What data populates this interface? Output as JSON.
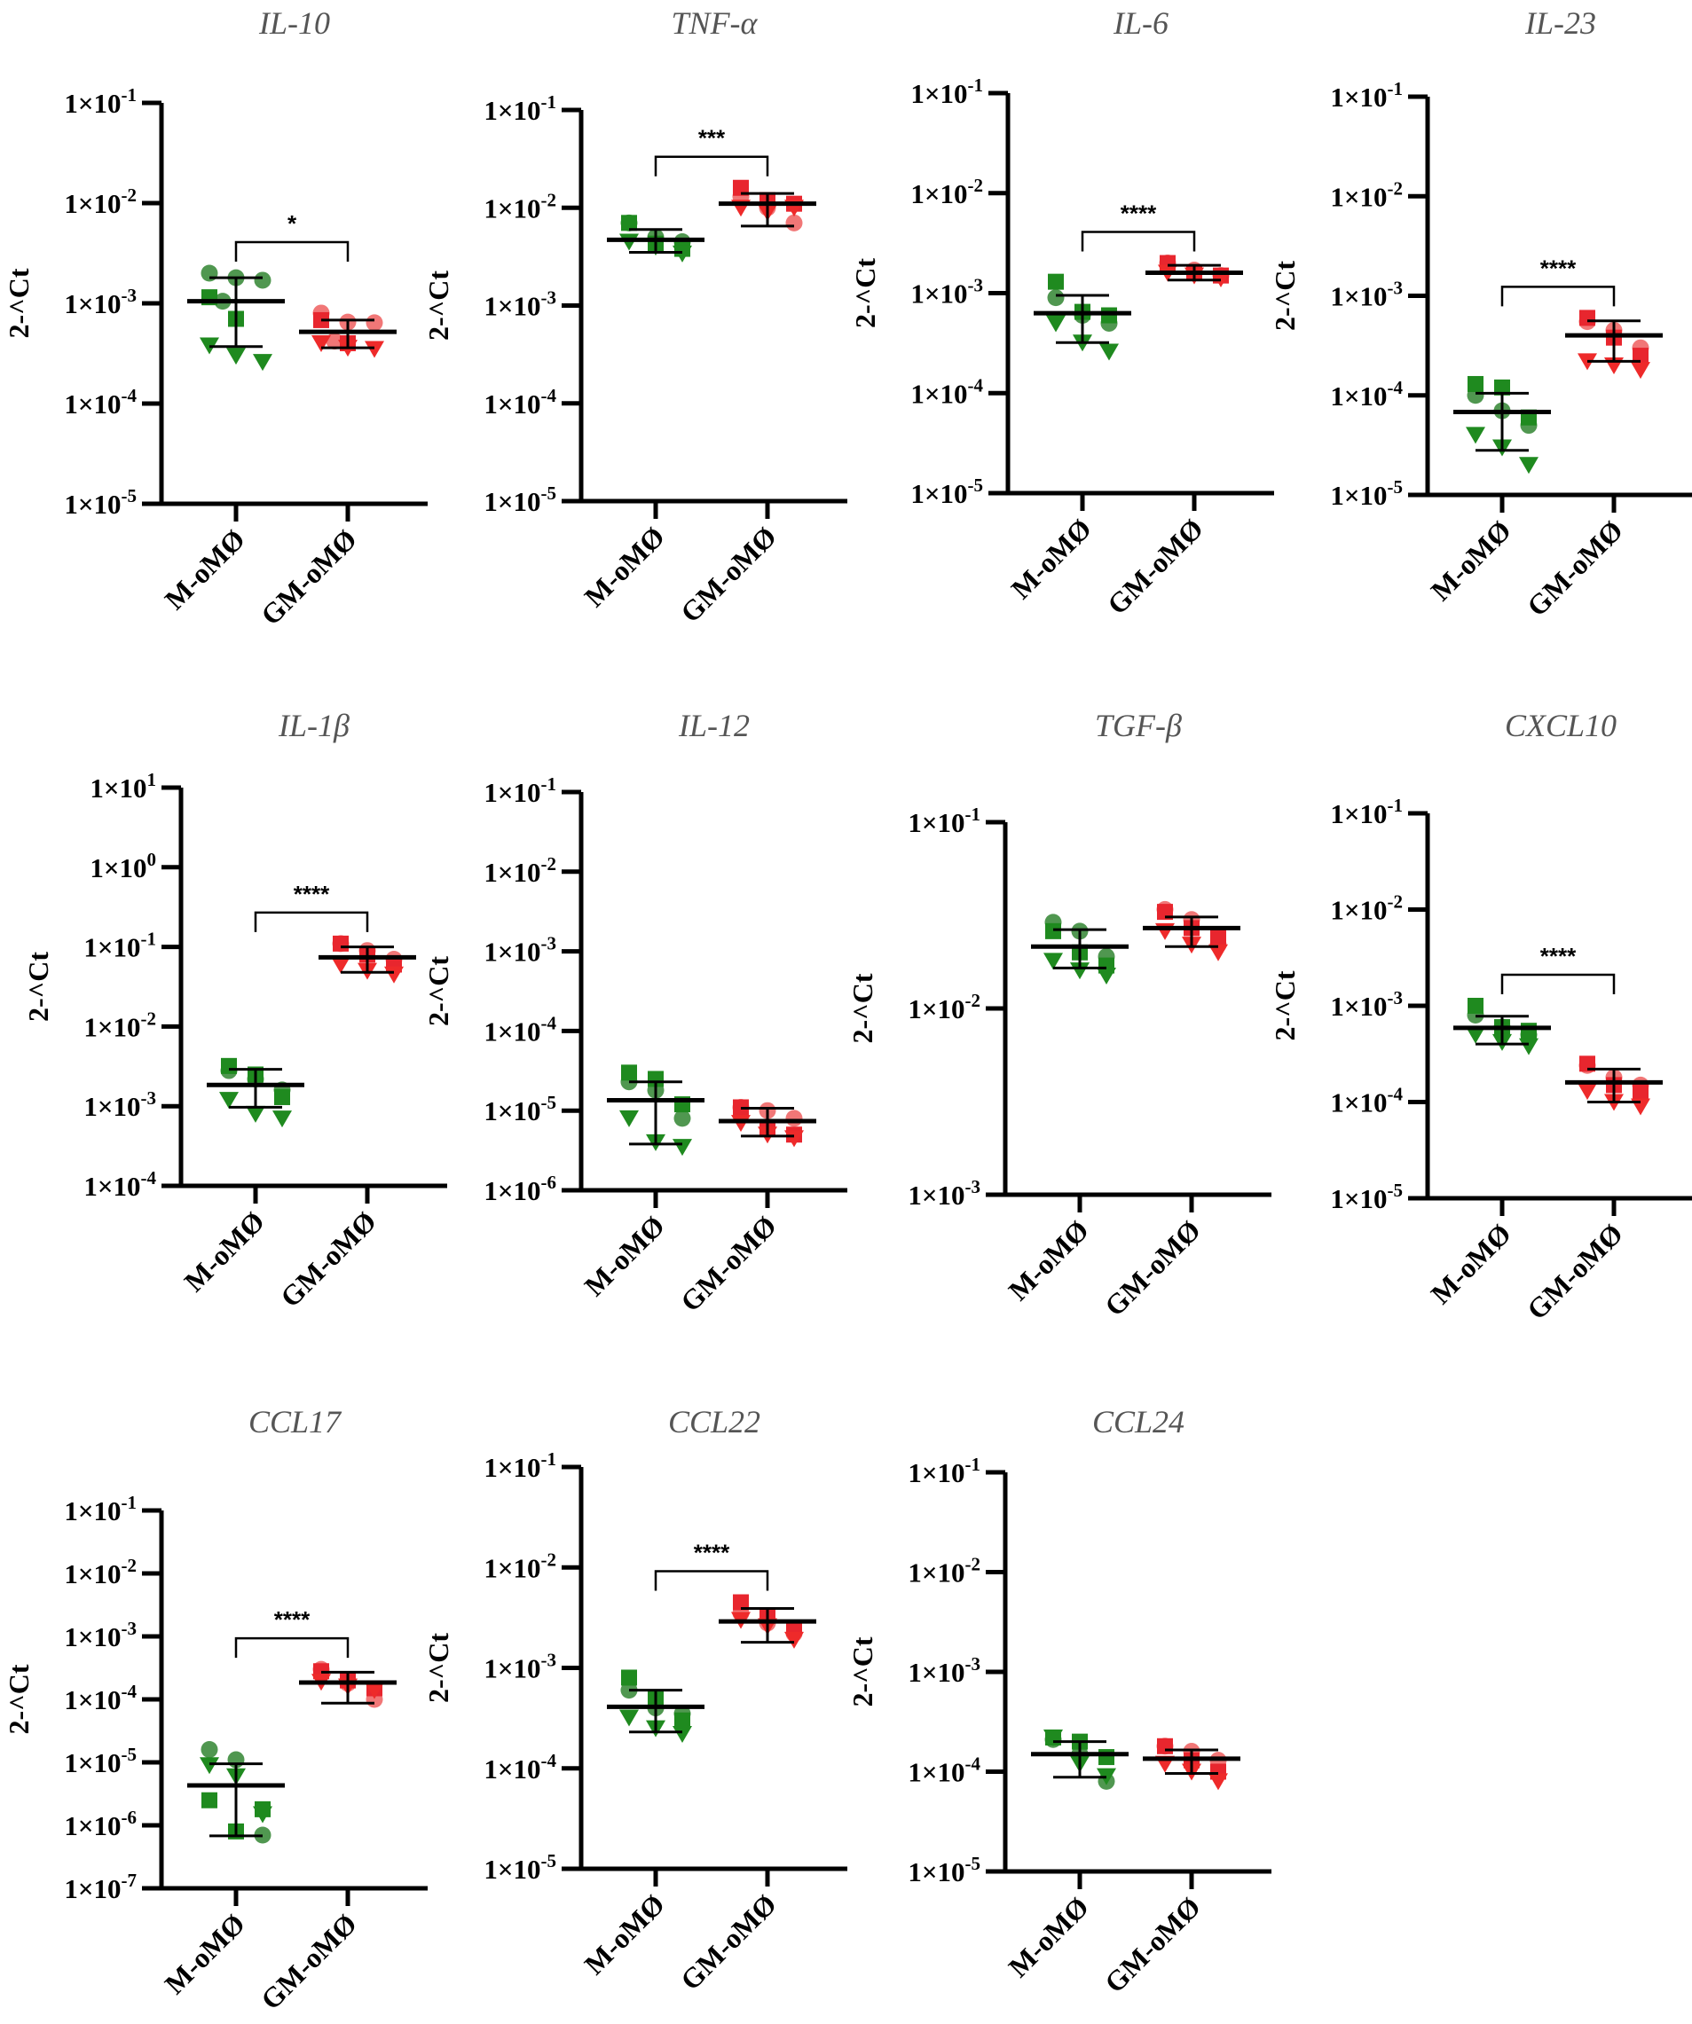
{
  "chart_data": [
    {
      "type": "scatter",
      "title": "IL-10",
      "ylabel": "2-^Ct",
      "yscale": "log",
      "ylim": [
        1e-05,
        0.1
      ],
      "ticks": [
        -1,
        -2,
        -3,
        -4,
        -5
      ],
      "categories": [
        "M-oMØ",
        "GM-oMØ"
      ],
      "significance": "*",
      "groups": [
        {
          "name": "M-oMØ",
          "mean": 0.00105,
          "err": [
            0.00037,
            0.0018
          ],
          "points": {
            "circle": [
              0.002,
              0.0018,
              0.0017,
              0.00105
            ],
            "square": [
              0.00115,
              0.0007
            ],
            "triangle": [
              0.00038,
              0.0003,
              0.00026
            ]
          }
        },
        {
          "name": "GM-oMØ",
          "mean": 0.00052,
          "err": [
            0.00036,
            0.00068
          ],
          "points": {
            "circle": [
              0.0008,
              0.00065,
              0.00064,
              0.00042
            ],
            "square": [
              0.00068,
              0.0004
            ],
            "triangle": [
              0.0004,
              0.00036,
              0.00035
            ]
          }
        }
      ]
    },
    {
      "type": "scatter",
      "title": "TNF-α",
      "ylabel": "2-^Ct",
      "yscale": "log",
      "ylim": [
        1e-05,
        0.1
      ],
      "ticks": [
        -1,
        -2,
        -3,
        -4,
        -5
      ],
      "categories": [
        "M-oMØ",
        "GM-oMØ"
      ],
      "significance": "***",
      "groups": [
        {
          "name": "M-oMØ",
          "mean": 0.0047,
          "err": [
            0.0035,
            0.006
          ],
          "points": {
            "circle": [
              0.007,
              0.005,
              0.0045
            ],
            "square": [
              0.007,
              0.0043,
              0.0038
            ],
            "triangle": [
              0.0045,
              0.004,
              0.0034
            ]
          }
        },
        {
          "name": "GM-oMØ",
          "mean": 0.011,
          "err": [
            0.0065,
            0.014
          ],
          "points": {
            "circle": [
              0.013,
              0.01,
              0.007
            ],
            "square": [
              0.016,
              0.012,
              0.011
            ],
            "triangle": [
              0.01,
              0.009,
              0.01
            ]
          }
        }
      ]
    },
    {
      "type": "scatter",
      "title": "IL-6",
      "ylabel": "2-^Ct",
      "yscale": "log",
      "ylim": [
        1e-05,
        0.1
      ],
      "ticks": [
        -1,
        -2,
        -3,
        -4,
        -5
      ],
      "categories": [
        "M-oMØ",
        "GM-oMØ"
      ],
      "significance": "****",
      "groups": [
        {
          "name": "M-oMØ",
          "mean": 0.00063,
          "err": [
            0.00032,
            0.00095
          ],
          "points": {
            "circle": [
              0.0009,
              0.0006,
              0.0005
            ],
            "square": [
              0.0013,
              0.00065,
              0.0006
            ],
            "triangle": [
              0.0005,
              0.00032,
              0.00026
            ]
          }
        },
        {
          "name": "GM-oMØ",
          "mean": 0.0016,
          "err": [
            0.00135,
            0.0019
          ],
          "points": {
            "circle": [
              0.002,
              0.0017,
              0.0015
            ],
            "square": [
              0.002,
              0.0016,
              0.0015
            ],
            "triangle": [
              0.0016,
              0.0015,
              0.0014
            ]
          }
        }
      ]
    },
    {
      "type": "scatter",
      "title": "IL-23",
      "ylabel": "2-^Ct",
      "yscale": "log",
      "ylim": [
        1e-05,
        0.1
      ],
      "ticks": [
        -1,
        -2,
        -3,
        -4,
        -5
      ],
      "categories": [
        "M-oMØ",
        "GM-oMØ"
      ],
      "significance": "****",
      "groups": [
        {
          "name": "M-oMØ",
          "mean": 6.8e-05,
          "err": [
            2.8e-05,
            0.000105
          ],
          "points": {
            "circle": [
              0.0001,
              7e-05,
              5e-05
            ],
            "square": [
              0.00013,
              0.00012,
              6e-05
            ],
            "triangle": [
              4e-05,
              3e-05,
              2e-05
            ]
          }
        },
        {
          "name": "GM-oMØ",
          "mean": 0.0004,
          "err": [
            0.00022,
            0.00056
          ],
          "points": {
            "circle": [
              0.00055,
              0.00045,
              0.0003
            ],
            "square": [
              0.0006,
              0.00038,
              0.00025
            ],
            "triangle": [
              0.00022,
              0.0002,
              0.00018
            ]
          }
        }
      ]
    },
    {
      "type": "scatter",
      "title": "IL-1β",
      "ylabel": "2-^Ct",
      "yscale": "log",
      "ylim": [
        0.0001,
        10.0
      ],
      "ticks": [
        1,
        0,
        -1,
        -2,
        -3,
        -4
      ],
      "categories": [
        "M-oMØ",
        "GM-oMØ"
      ],
      "significance": "****",
      "groups": [
        {
          "name": "M-oMØ",
          "mean": 0.00185,
          "err": [
            0.00097,
            0.0029
          ],
          "points": {
            "circle": [
              0.0028,
              0.0022,
              0.0016
            ],
            "square": [
              0.0032,
              0.0025,
              0.0013
            ],
            "triangle": [
              0.0012,
              0.0008,
              0.0007
            ]
          }
        },
        {
          "name": "GM-oMØ",
          "mean": 0.074,
          "err": [
            0.048,
            0.1
          ],
          "points": {
            "circle": [
              0.11,
              0.09,
              0.07
            ],
            "square": [
              0.11,
              0.08,
              0.06
            ],
            "triangle": [
              0.06,
              0.05,
              0.045
            ]
          }
        }
      ]
    },
    {
      "type": "scatter",
      "title": "IL-12",
      "ylabel": "2-^Ct",
      "yscale": "log",
      "ylim": [
        1e-06,
        0.1
      ],
      "ticks": [
        -1,
        -2,
        -3,
        -4,
        -5,
        -6
      ],
      "categories": [
        "M-oMØ",
        "GM-oMØ"
      ],
      "significance": "",
      "groups": [
        {
          "name": "M-oMØ",
          "mean": 1.35e-05,
          "err": [
            3.8e-06,
            2.3e-05
          ],
          "points": {
            "circle": [
              2.3e-05,
              1.8e-05,
              8e-06
            ],
            "square": [
              3e-05,
              2.5e-05,
              1.2e-05
            ],
            "triangle": [
              8e-06,
              4e-06,
              3.5e-06
            ]
          }
        },
        {
          "name": "GM-oMØ",
          "mean": 7.4e-06,
          "err": [
            4.8e-06,
            1.07e-05
          ],
          "points": {
            "circle": [
              1.1e-05,
              1e-05,
              8e-06
            ],
            "square": [
              1.1e-05,
              6e-06,
              5e-06
            ],
            "triangle": [
              7e-06,
              5e-06,
              4.5e-06
            ]
          }
        }
      ]
    },
    {
      "type": "scatter",
      "title": "TGF-β",
      "ylabel": "2-^Ct",
      "yscale": "log",
      "ylim": [
        0.001,
        0.1
      ],
      "ticks": [
        -1,
        -2,
        -3
      ],
      "categories": [
        "M-oMØ",
        "GM-oMØ"
      ],
      "significance": "",
      "groups": [
        {
          "name": "M-oMØ",
          "mean": 0.0215,
          "err": [
            0.0165,
            0.0265
          ],
          "points": {
            "circle": [
              0.029,
              0.026,
              0.019
            ],
            "square": [
              0.026,
              0.02,
              0.017
            ],
            "triangle": [
              0.018,
              0.016,
              0.015
            ]
          }
        },
        {
          "name": "GM-oMØ",
          "mean": 0.027,
          "err": [
            0.0215,
            0.031
          ],
          "points": {
            "circle": [
              0.034,
              0.03,
              0.022
            ],
            "square": [
              0.033,
              0.027,
              0.024
            ],
            "triangle": [
              0.026,
              0.022,
              0.02
            ]
          }
        }
      ]
    },
    {
      "type": "scatter",
      "title": "CXCL10",
      "ylabel": "2-^Ct",
      "yscale": "log",
      "ylim": [
        1e-05,
        0.1
      ],
      "ticks": [
        -1,
        -2,
        -3,
        -4,
        -5
      ],
      "categories": [
        "M-oMØ",
        "GM-oMØ"
      ],
      "significance": "****",
      "groups": [
        {
          "name": "M-oMØ",
          "mean": 0.00059,
          "err": [
            0.0004,
            0.00078
          ],
          "points": {
            "circle": [
              0.0008,
              0.0006,
              0.0005
            ],
            "square": [
              0.001,
              0.0006,
              0.00055
            ],
            "triangle": [
              0.0005,
              0.00042,
              0.00038
            ]
          }
        },
        {
          "name": "GM-oMØ",
          "mean": 0.00016,
          "err": [
            0.0001,
            0.00022
          ],
          "points": {
            "circle": [
              0.00024,
              0.00018,
              0.00015
            ],
            "square": [
              0.00025,
              0.00015,
              0.00013
            ],
            "triangle": [
              0.00013,
              0.0001,
              9e-05
            ]
          }
        }
      ]
    },
    {
      "type": "scatter",
      "title": "CCL17",
      "ylabel": "2-^Ct",
      "yscale": "log",
      "ylim": [
        1e-07,
        0.1
      ],
      "ticks": [
        -1,
        -2,
        -3,
        -4,
        -5,
        -6,
        -7
      ],
      "categories": [
        "M-oMØ",
        "GM-oMØ"
      ],
      "significance": "****",
      "groups": [
        {
          "name": "M-oMØ",
          "mean": 4.3e-06,
          "err": [
            6.8e-07,
            9.5e-06
          ],
          "points": {
            "circle": [
              1.6e-05,
              1.1e-05,
              7e-07
            ],
            "square": [
              2.5e-06,
              8e-07,
              1.8e-06
            ],
            "triangle": [
              9e-06,
              6e-06,
              1.5e-06
            ]
          }
        },
        {
          "name": "GM-oMØ",
          "mean": 0.000185,
          "err": [
            8.7e-05,
            0.00027
          ],
          "points": {
            "circle": [
              0.0003,
              0.00018,
              0.0001
            ],
            "square": [
              0.00028,
              0.0002,
              0.00015
            ],
            "triangle": [
              0.00019,
              0.00016,
              0.00014
            ]
          }
        }
      ]
    },
    {
      "type": "scatter",
      "title": "CCL22",
      "ylabel": "2-^Ct",
      "yscale": "log",
      "ylim": [
        1e-05,
        0.1
      ],
      "ticks": [
        -1,
        -2,
        -3,
        -4,
        -5
      ],
      "categories": [
        "M-oMØ",
        "GM-oMØ"
      ],
      "significance": "****",
      "groups": [
        {
          "name": "M-oMØ",
          "mean": 0.00041,
          "err": [
            0.00023,
            0.0006
          ],
          "points": {
            "circle": [
              0.0006,
              0.0004,
              0.00035
            ],
            "square": [
              0.0008,
              0.0005,
              0.0003
            ],
            "triangle": [
              0.00032,
              0.00025,
              0.00022
            ]
          }
        },
        {
          "name": "GM-oMØ",
          "mean": 0.0029,
          "err": [
            0.0018,
            0.0039
          ],
          "points": {
            "circle": [
              0.0035,
              0.0028,
              0.0022
            ],
            "square": [
              0.0045,
              0.0033,
              0.0025
            ],
            "triangle": [
              0.003,
              0.0026,
              0.0019
            ]
          }
        }
      ]
    },
    {
      "type": "scatter",
      "title": "CCL24",
      "ylabel": "2-^Ct",
      "yscale": "log",
      "ylim": [
        1e-05,
        0.1
      ],
      "ticks": [
        -1,
        -2,
        -3,
        -4,
        -5
      ],
      "categories": [
        "M-oMØ",
        "GM-oMØ"
      ],
      "significance": "",
      "groups": [
        {
          "name": "M-oMØ",
          "mean": 0.00015,
          "err": [
            8.8e-05,
            0.0002
          ],
          "points": {
            "circle": [
              0.00021,
              0.00015,
              8e-05
            ],
            "square": [
              0.00022,
              0.0002,
              0.00014
            ],
            "triangle": [
              0.00022,
              0.00012,
              9e-05
            ]
          }
        },
        {
          "name": "GM-oMØ",
          "mean": 0.000135,
          "err": [
            9.6e-05,
            0.000165
          ],
          "points": {
            "circle": [
              0.00018,
              0.00016,
              0.00013
            ],
            "square": [
              0.00018,
              0.00013,
              0.0001
            ],
            "triangle": [
              0.00012,
              0.0001,
              8e-05
            ]
          }
        }
      ]
    }
  ],
  "tick_prefix": "1×10",
  "colors": {
    "M-oMØ": {
      "circle": "#3d8c3d",
      "square": "#1f8a1f",
      "triangle": "#1f8a1f"
    },
    "GM-oMØ": {
      "circle": "#f06868",
      "square": "#e8262e",
      "triangle": "#ee2a2a"
    }
  }
}
